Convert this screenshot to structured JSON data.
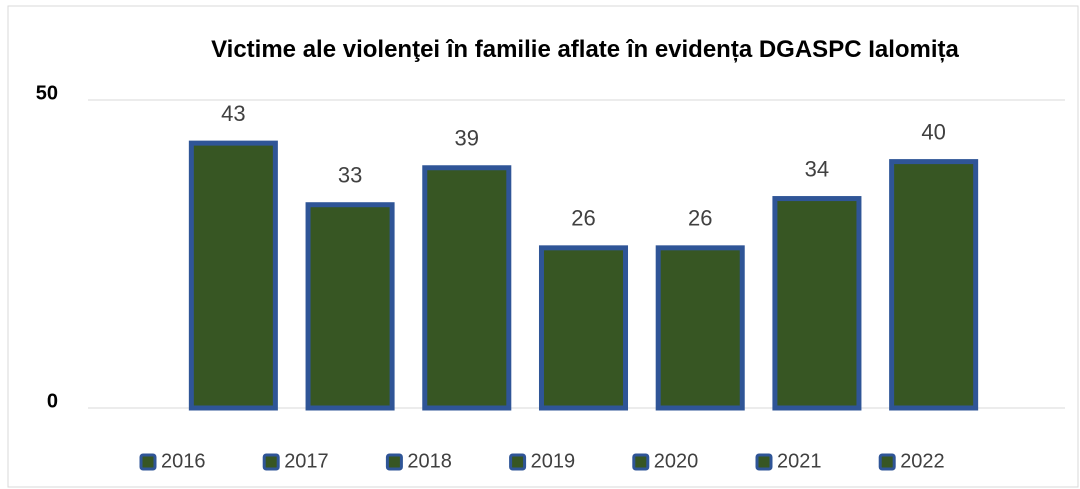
{
  "chart_data": {
    "type": "bar",
    "title": "Victime ale violenţei în familie aflate în evidența DGASPC Ialomița",
    "series": [
      {
        "name": "2016",
        "color": "#375623",
        "edgecolor": "#2f5597",
        "values": [
          43
        ]
      },
      {
        "name": "2017",
        "color": "#375623",
        "edgecolor": "#2f5597",
        "values": [
          33
        ]
      },
      {
        "name": "2018",
        "color": "#375623",
        "edgecolor": "#2f5597",
        "values": [
          39
        ]
      },
      {
        "name": "2019",
        "color": "#375623",
        "edgecolor": "#2f5597",
        "values": [
          26
        ]
      },
      {
        "name": "2020",
        "color": "#375623",
        "edgecolor": "#2f5597",
        "values": [
          26
        ]
      },
      {
        "name": "2021",
        "color": "#375623",
        "edgecolor": "#2f5597",
        "values": [
          34
        ]
      },
      {
        "name": "2022",
        "color": "#375623",
        "edgecolor": "#2f5597",
        "values": [
          40
        ]
      }
    ],
    "ylim": [
      0,
      50
    ],
    "yticks": [
      0,
      50
    ],
    "grid": true,
    "legend": "bottom"
  }
}
